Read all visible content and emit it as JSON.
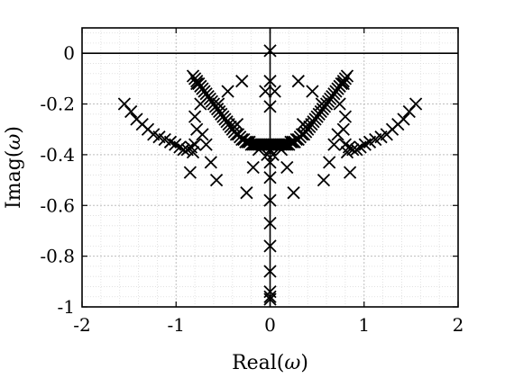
{
  "chart_data": {
    "type": "scatter",
    "title": "",
    "xlabel": "Real(ω)",
    "ylabel": "Imag(ω)",
    "xlim": [
      -2,
      2
    ],
    "ylim": [
      -1,
      0.1
    ],
    "xticks": [
      -2,
      -1,
      0,
      1,
      2
    ],
    "yticks": [
      0,
      -0.2,
      -0.4,
      -0.6,
      -0.8,
      -1
    ],
    "xtick_labels": [
      "-2",
      "-1",
      "0",
      "1",
      "2"
    ],
    "ytick_labels": [
      "0",
      "-0.2",
      "-0.4",
      "-0.6",
      "-0.8",
      "-1"
    ],
    "grid": "on (major and minor, dotted)",
    "reference_lines": {
      "x": 0,
      "y": 0
    },
    "marker": "x",
    "color": "#000000",
    "series": [
      {
        "x": [
          -1.55,
          -1.48,
          -1.42,
          -1.36,
          -1.3,
          -1.24,
          -1.18,
          -1.12,
          -1.06,
          -1.01,
          -0.96,
          -0.92,
          -0.88,
          -0.84,
          -0.8,
          0.8,
          0.84,
          0.88,
          0.92,
          0.96,
          1.01,
          1.06,
          1.12,
          1.18,
          1.24,
          1.3,
          1.36,
          1.42,
          1.48,
          1.55,
          -0.82,
          -0.8,
          -0.78,
          -0.76,
          -0.74,
          -0.72,
          -0.7,
          -0.68,
          -0.66,
          -0.64,
          -0.62,
          -0.6,
          -0.58,
          -0.56,
          -0.54,
          -0.52,
          -0.5,
          -0.48,
          -0.46,
          -0.44,
          -0.42,
          -0.4,
          -0.38,
          -0.36,
          -0.34,
          -0.32,
          -0.3,
          -0.28,
          -0.26,
          -0.24,
          -0.22,
          -0.2,
          -0.18,
          -0.16,
          -0.14,
          -0.12,
          -0.1,
          -0.08,
          -0.06,
          -0.04,
          -0.02,
          0.0,
          0.02,
          0.04,
          0.06,
          0.08,
          0.1,
          0.12,
          0.14,
          0.16,
          0.18,
          0.2,
          0.22,
          0.24,
          0.26,
          0.28,
          0.3,
          0.32,
          0.34,
          0.36,
          0.38,
          0.4,
          0.42,
          0.44,
          0.46,
          0.48,
          0.5,
          0.52,
          0.54,
          0.56,
          0.58,
          0.6,
          0.62,
          0.64,
          0.66,
          0.68,
          0.7,
          0.72,
          0.74,
          0.76,
          0.78,
          0.8,
          0.82,
          -0.85,
          -0.82,
          -0.78,
          -0.74,
          -0.8,
          -0.72,
          -0.68,
          -0.63,
          -0.57,
          -0.45,
          -0.38,
          -0.25,
          -0.18,
          -0.12,
          0.85,
          0.82,
          0.78,
          0.74,
          0.8,
          0.72,
          0.68,
          0.63,
          0.57,
          0.45,
          0.38,
          0.25,
          0.18,
          0.12,
          -0.05,
          0.05,
          -0.03,
          0.03,
          0.0,
          0.0,
          0.0,
          0.0,
          0.0,
          0.0,
          0.0,
          0.0,
          0.0,
          0.0,
          0.0,
          0.0,
          0.0
        ],
        "y": [
          -0.2,
          -0.23,
          -0.26,
          -0.28,
          -0.3,
          -0.32,
          -0.33,
          -0.34,
          -0.35,
          -0.36,
          -0.37,
          -0.38,
          -0.38,
          -0.37,
          -0.36,
          -0.36,
          -0.37,
          -0.38,
          -0.38,
          -0.37,
          -0.36,
          -0.35,
          -0.34,
          -0.33,
          -0.32,
          -0.3,
          -0.28,
          -0.26,
          -0.23,
          -0.2,
          -0.09,
          -0.1,
          -0.11,
          -0.12,
          -0.13,
          -0.14,
          -0.15,
          -0.16,
          -0.17,
          -0.18,
          -0.19,
          -0.2,
          -0.21,
          -0.22,
          -0.23,
          -0.24,
          -0.25,
          -0.26,
          -0.27,
          -0.28,
          -0.29,
          -0.3,
          -0.31,
          -0.32,
          -0.32,
          -0.33,
          -0.34,
          -0.34,
          -0.35,
          -0.35,
          -0.35,
          -0.36,
          -0.36,
          -0.36,
          -0.36,
          -0.36,
          -0.36,
          -0.36,
          -0.36,
          -0.36,
          -0.36,
          -0.36,
          -0.36,
          -0.36,
          -0.36,
          -0.36,
          -0.36,
          -0.36,
          -0.36,
          -0.36,
          -0.36,
          -0.36,
          -0.35,
          -0.35,
          -0.35,
          -0.34,
          -0.34,
          -0.33,
          -0.32,
          -0.32,
          -0.31,
          -0.3,
          -0.29,
          -0.28,
          -0.27,
          -0.26,
          -0.25,
          -0.24,
          -0.23,
          -0.22,
          -0.21,
          -0.2,
          -0.19,
          -0.18,
          -0.17,
          -0.16,
          -0.15,
          -0.14,
          -0.13,
          -0.12,
          -0.11,
          -0.1,
          -0.09,
          -0.47,
          -0.39,
          -0.3,
          -0.2,
          -0.25,
          -0.32,
          -0.36,
          -0.43,
          -0.5,
          -0.15,
          -0.29,
          -0.55,
          -0.45,
          -0.38,
          -0.47,
          -0.39,
          -0.3,
          -0.2,
          -0.25,
          -0.32,
          -0.36,
          -0.43,
          -0.5,
          -0.15,
          -0.29,
          -0.55,
          -0.45,
          -0.38,
          -0.15,
          -0.15,
          -0.4,
          -0.4,
          0.01,
          -0.11,
          -0.21,
          -0.38,
          -0.43,
          -0.49,
          -0.58,
          -0.67,
          -0.76,
          -0.86,
          -0.94,
          -0.96,
          -0.97
        ]
      },
      {
        "x": [
          -0.78,
          -0.55,
          -0.35,
          0.35,
          0.55,
          0.78,
          -0.3,
          0.3
        ],
        "y": [
          -0.12,
          -0.2,
          -0.28,
          -0.28,
          -0.2,
          -0.12,
          -0.11,
          -0.11
        ]
      }
    ]
  }
}
